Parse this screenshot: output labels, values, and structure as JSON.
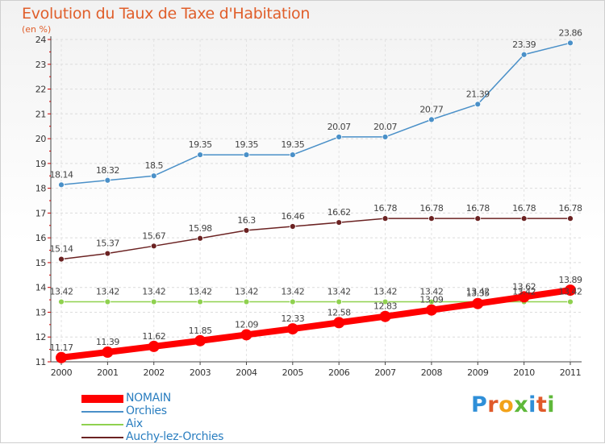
{
  "title": "Evolution du Taux de Taxe d'Habitation",
  "subtitle": "(en %)",
  "logo_text": "Proxiti",
  "chart_data": {
    "type": "line",
    "title": "Evolution du Taux de Taxe d'Habitation",
    "subtitle": "(en %)",
    "x": [
      2000,
      2001,
      2002,
      2003,
      2004,
      2005,
      2006,
      2007,
      2008,
      2009,
      2010,
      2011
    ],
    "yticks": [
      11,
      12,
      13,
      14,
      15,
      16,
      17,
      18,
      19,
      20,
      21,
      22,
      23,
      24
    ],
    "ylim": [
      11,
      24
    ],
    "grid": true,
    "legend_position": "bottom-left",
    "series": [
      {
        "name": "Orchies",
        "color": "#4a90c8",
        "values": [
          18.14,
          18.32,
          18.5,
          19.35,
          19.35,
          19.35,
          20.07,
          20.07,
          20.77,
          21.39,
          23.39,
          23.86
        ],
        "labels": [
          "18.14",
          "18.32",
          "18.5",
          "19.35",
          "19.35",
          "19.35",
          "20.07",
          "20.07",
          "20.77",
          "21.39",
          "23.39",
          "23.86"
        ]
      },
      {
        "name": "Auchy-lez-Orchies",
        "color": "#6b2222",
        "values": [
          15.14,
          15.37,
          15.67,
          15.98,
          16.3,
          16.46,
          16.62,
          16.78,
          16.78,
          16.78,
          16.78,
          16.78
        ],
        "labels": [
          "15.14",
          "15.37",
          "15.67",
          "15.98",
          "16.3",
          "16.46",
          "16.62",
          "16.78",
          "16.78",
          "16.78",
          "16.78",
          "16.78"
        ]
      },
      {
        "name": "Aix",
        "color": "#8fd14f",
        "values": [
          13.42,
          13.42,
          13.42,
          13.42,
          13.42,
          13.42,
          13.42,
          13.42,
          13.42,
          13.42,
          13.42,
          13.42
        ],
        "labels": [
          "13.42",
          "13.42",
          "13.42",
          "13.42",
          "13.42",
          "13.42",
          "13.42",
          "13.42",
          "13.42",
          "13.42",
          "13.42",
          "13.42"
        ]
      },
      {
        "name": "NOMAIN",
        "color": "#ff0000",
        "values": [
          11.17,
          11.39,
          11.62,
          11.85,
          12.09,
          12.33,
          12.58,
          12.83,
          13.09,
          13.35,
          13.62,
          13.89
        ],
        "labels": [
          "11.17",
          "11.39",
          "11.62",
          "11.85",
          "12.09",
          "12.33",
          "12.58",
          "12.83",
          "13.09",
          "13.35",
          "13.62",
          "13.89"
        ]
      }
    ]
  },
  "legend": [
    {
      "name": "NOMAIN",
      "color": "#ff0000"
    },
    {
      "name": "Orchies",
      "color": "#4a90c8"
    },
    {
      "name": "Aix",
      "color": "#8fd14f"
    },
    {
      "name": "Auchy-lez-Orchies",
      "color": "#6b2222"
    }
  ]
}
